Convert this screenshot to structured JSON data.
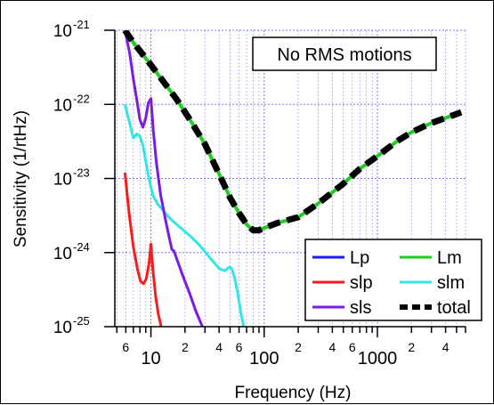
{
  "chart_data": {
    "type": "line",
    "xscale": "log",
    "yscale": "log",
    "xlabel": "Frequency (Hz)",
    "ylabel": "Sensitivity (1/rtHz)",
    "xlim": [
      4.8,
      6000
    ],
    "ylim": [
      1e-25,
      1e-21
    ],
    "grid": true,
    "legend_position": "bottom-right",
    "annotation": "No RMS motions",
    "x_major_ticks": [
      {
        "value": 10,
        "label": "10"
      },
      {
        "value": 100,
        "label": "100"
      },
      {
        "value": 1000,
        "label": "1000"
      }
    ],
    "x_minor_labels": [
      {
        "value": 6,
        "label": "6"
      },
      {
        "value": 20,
        "label": "2"
      },
      {
        "value": 40,
        "label": "4"
      },
      {
        "value": 60,
        "label": "6"
      },
      {
        "value": 200,
        "label": "2"
      },
      {
        "value": 400,
        "label": "4"
      },
      {
        "value": 600,
        "label": "6"
      },
      {
        "value": 2000,
        "label": "2"
      },
      {
        "value": 4000,
        "label": "4"
      }
    ],
    "y_ticks": [
      {
        "exp": -21,
        "base": "10",
        "sup": "-21"
      },
      {
        "exp": -22,
        "base": "10",
        "sup": "-22"
      },
      {
        "exp": -23,
        "base": "10",
        "sup": "-23"
      },
      {
        "exp": -24,
        "base": "10",
        "sup": "-24"
      },
      {
        "exp": -25,
        "base": "10",
        "sup": "-25"
      }
    ],
    "series": [
      {
        "name": "Lp",
        "color": "#1a1aff",
        "width": 3,
        "dash": "",
        "x": [],
        "y": []
      },
      {
        "name": "slp",
        "color": "#ff1a1a",
        "width": 3,
        "dash": "",
        "x": [
          5.9,
          6.4,
          7.0,
          7.6,
          8.1,
          8.6,
          9.1,
          9.6,
          10.0,
          10.4,
          11.0,
          11.6,
          12.3
        ],
        "y": [
          1.2e-23,
          3.5e-24,
          1.2e-24,
          6e-25,
          4.1e-25,
          3.8e-25,
          4.4e-25,
          7e-25,
          1.3e-24,
          6e-25,
          2.6e-25,
          1.5e-25,
          1e-25
        ]
      },
      {
        "name": "Lm",
        "color": "#22cc22",
        "width": 4,
        "dash": "",
        "x": [
          5.9,
          7,
          8,
          10,
          13,
          17,
          22,
          30,
          40,
          50,
          60,
          70,
          80,
          90,
          100,
          130,
          200,
          300,
          500,
          700,
          1000,
          1500,
          2000,
          3000,
          5500
        ],
        "y": [
          1e-21,
          6.8e-22,
          5.3e-22,
          3.4e-22,
          2e-22,
          1.15e-22,
          6.3e-23,
          2.9e-23,
          1.15e-23,
          5.5e-24,
          3.4e-24,
          2.4e-24,
          2e-24,
          2e-24,
          2.15e-24,
          2.5e-24,
          3e-24,
          4.6e-24,
          8.5e-24,
          1.35e-23,
          2e-23,
          3.2e-23,
          4.2e-23,
          5.6e-23,
          7.8e-23
        ]
      },
      {
        "name": "slm",
        "color": "#33e6e6",
        "width": 3,
        "dash": "",
        "x": [
          5.9,
          6.5,
          7.0,
          7.5,
          8.0,
          8.5,
          9.0,
          9.5,
          10.0,
          10.5,
          11.5,
          13,
          15,
          18,
          22,
          27,
          33,
          40,
          45,
          48,
          50,
          52,
          55,
          58,
          62,
          66
        ],
        "y": [
          1e-22,
          5.5e-23,
          3.5e-23,
          4e-23,
          3.7e-23,
          2.8e-23,
          1.7e-23,
          1.1e-23,
          7.5e-24,
          5.8e-24,
          4.5e-24,
          3.6e-24,
          2.8e-24,
          2.2e-24,
          1.7e-24,
          1.25e-24,
          8.6e-25,
          6.1e-25,
          5.7e-25,
          6.2e-25,
          6.4e-25,
          5.9e-25,
          4.5e-25,
          3e-25,
          1.6e-25,
          1e-25
        ]
      },
      {
        "name": "sls",
        "color": "#7a1ae6",
        "width": 3,
        "dash": "",
        "x": [
          5.9,
          6.5,
          7.0,
          7.5,
          8.0,
          8.5,
          9.0,
          9.5,
          10.0,
          10.5,
          11.2,
          12.2,
          13.5,
          14.5,
          15.3,
          16,
          17,
          19,
          22,
          25,
          28.5
        ],
        "y": [
          1e-21,
          4.8e-22,
          2.2e-22,
          1.15e-22,
          6.2e-23,
          4.9e-23,
          6.5e-23,
          1.05e-22,
          1.2e-22,
          4.5e-23,
          1.6e-23,
          6e-24,
          2.7e-24,
          1.6e-24,
          1.1e-24,
          1.05e-24,
          8e-25,
          5e-25,
          2.8e-25,
          1.6e-25,
          1e-25
        ]
      },
      {
        "name": "total",
        "color": "#000000",
        "width": 7,
        "dash": "14 8",
        "x": [
          5.9,
          7,
          8,
          10,
          13,
          17,
          22,
          30,
          40,
          50,
          60,
          70,
          80,
          90,
          100,
          130,
          200,
          300,
          500,
          700,
          1000,
          1500,
          2000,
          3000,
          5500
        ],
        "y": [
          1e-21,
          6.8e-22,
          5.3e-22,
          3.4e-22,
          2e-22,
          1.15e-22,
          6.3e-23,
          2.9e-23,
          1.15e-23,
          5.5e-24,
          3.4e-24,
          2.4e-24,
          2e-24,
          2e-24,
          2.15e-24,
          2.5e-24,
          3e-24,
          4.6e-24,
          8.5e-24,
          1.35e-23,
          2e-23,
          3.2e-23,
          4.2e-23,
          5.6e-23,
          7.8e-23
        ]
      }
    ],
    "legend_order": [
      "Lp",
      "Lm",
      "slp",
      "slm",
      "sls",
      "total"
    ]
  }
}
